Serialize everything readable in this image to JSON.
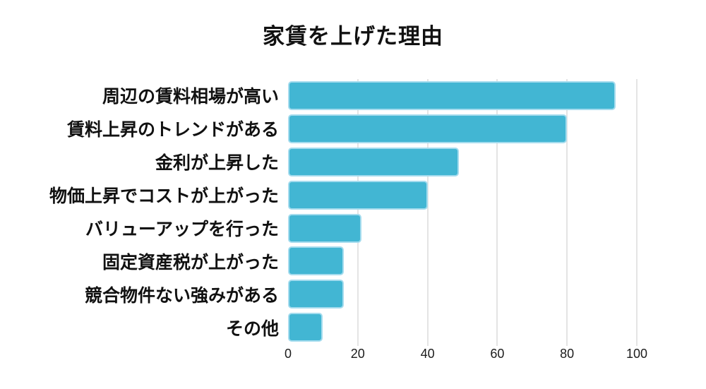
{
  "chart_style": {
    "background": "#ffffff",
    "bar_color": "#42b6d3",
    "bar_border_color": "#a5dcee",
    "grid_color": "#e4e4e4",
    "title_color": "#111111",
    "label_color": "#111111",
    "tick_color": "#1c1c1c"
  },
  "chart_data": {
    "type": "bar",
    "orientation": "horizontal",
    "title": "家賃を上げた理由",
    "categories": [
      "周辺の賃料相場が高い",
      "賃料上昇のトレンドがある",
      "金利が上昇した",
      "物価上昇でコストが上がった",
      "バリューアップを行った",
      "固定資産税が上がった",
      "競合物件ない強みがある",
      "その他"
    ],
    "values": [
      94,
      80,
      49,
      40,
      21,
      16,
      16,
      10
    ],
    "xlim": [
      0,
      100
    ],
    "x_ticks": [
      0,
      20,
      40,
      60,
      80,
      100
    ],
    "xlabel": "",
    "ylabel": "",
    "grid": true,
    "legend": false
  }
}
